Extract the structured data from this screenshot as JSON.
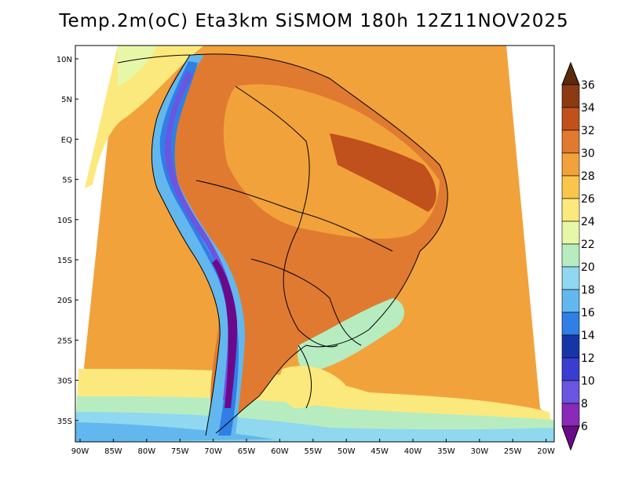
{
  "title": "Temp.2m(oC) Eta3km SiSMOM 180h 12Z11NOV2025",
  "map": {
    "variable": "Temp.2m",
    "units": "oC",
    "model": "Eta3km SiSMOM",
    "forecast_hour": "180h",
    "valid_time": "12Z11NOV2025",
    "lat_labels": [
      "10N",
      "5N",
      "EQ",
      "5S",
      "10S",
      "15S",
      "20S",
      "25S",
      "30S",
      "35S"
    ],
    "lon_labels": [
      "90W",
      "85W",
      "80W",
      "75W",
      "70W",
      "65W",
      "60W",
      "55W",
      "50W",
      "45W",
      "40W",
      "35W",
      "30W",
      "25W",
      "20W"
    ]
  },
  "colorbar": {
    "levels": [
      "36",
      "34",
      "32",
      "30",
      "28",
      "26",
      "24",
      "22",
      "20",
      "18",
      "16",
      "14",
      "12",
      "10",
      "8",
      "6"
    ],
    "colors": [
      "#5c2a0a",
      "#8b3a12",
      "#c0501c",
      "#e07a30",
      "#f2a23a",
      "#f8c64a",
      "#fbe97e",
      "#e7f7a8",
      "#b6ecc0",
      "#8fd8f0",
      "#62b8ee",
      "#2f7fe6",
      "#1636a8",
      "#3a3ed0",
      "#6a56e0",
      "#8a2ab8",
      "#6a0a8a"
    ]
  }
}
